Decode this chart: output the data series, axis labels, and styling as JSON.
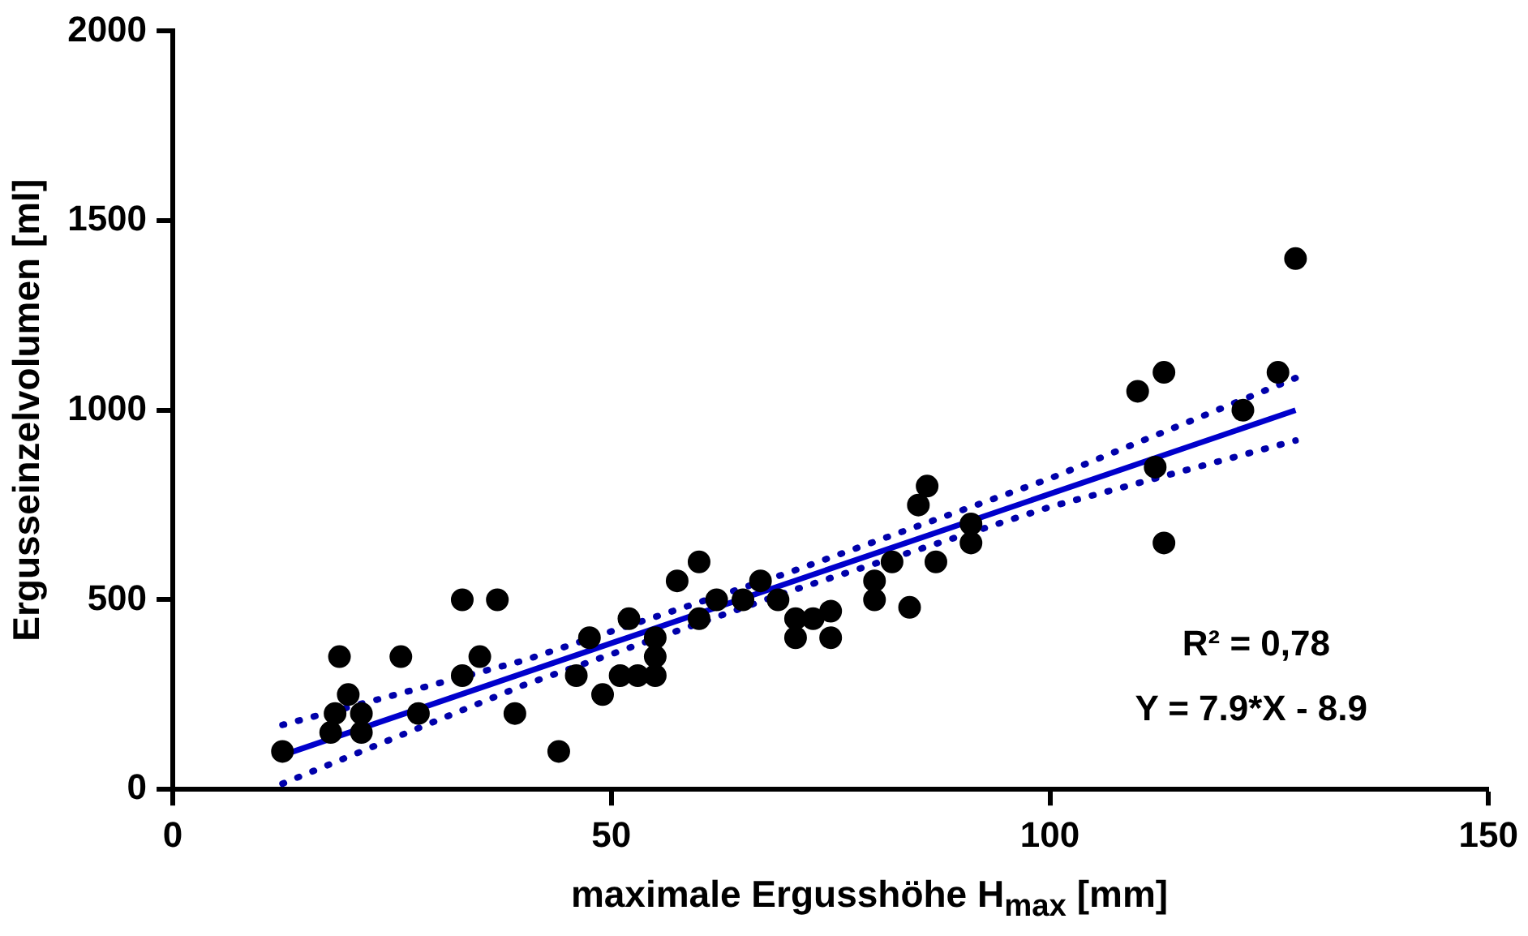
{
  "chart_data": {
    "type": "scatter",
    "xlabel": "maximale Ergusshöhe H$_{max}$ [mm]",
    "ylabel": "Ergusseinzelvolumen [ml]",
    "xlim": [
      0,
      150
    ],
    "xticks": [
      0,
      50,
      100,
      150
    ],
    "ylim": [
      0,
      2000
    ],
    "yticks": [
      0,
      500,
      1000,
      1500,
      2000
    ],
    "grid": false,
    "legend": false,
    "marker": "circle",
    "series": [
      {
        "color": "#000000",
        "x": [
          12.5,
          18,
          18.5,
          19,
          20,
          21.5,
          21.5,
          26,
          28,
          33,
          33,
          35,
          37,
          39,
          44,
          46,
          47.5,
          49,
          51,
          52,
          53,
          55,
          55,
          55,
          57.5,
          60,
          60,
          62,
          65,
          67,
          69,
          71,
          71,
          73,
          75,
          75,
          80,
          80,
          82,
          84,
          85,
          86,
          87,
          91,
          91,
          110,
          112,
          113,
          113,
          122,
          126,
          128
        ],
        "values": [
          100,
          150,
          200,
          350,
          250,
          200,
          150,
          350,
          200,
          500,
          300,
          350,
          500,
          200,
          100,
          300,
          400,
          250,
          300,
          450,
          300,
          400,
          350,
          300,
          550,
          450,
          600,
          500,
          500,
          550,
          500,
          400,
          450,
          450,
          470,
          400,
          500,
          550,
          600,
          480,
          750,
          800,
          600,
          700,
          650,
          1050,
          850,
          1100,
          650,
          1000,
          1100,
          1400
        ]
      },
      {
        "type": "line",
        "color": "#0000cc",
        "line_style": "solid",
        "marker": "none",
        "x": [
          12.5,
          128
        ],
        "values": [
          90,
          1000
        ]
      },
      {
        "type": "line",
        "color": "#0000aa",
        "line_style": "dotted",
        "marker": "none",
        "x": [
          12.5,
          40,
          70,
          100,
          128
        ],
        "values": [
          170,
          340,
          570,
          820,
          1085
        ]
      },
      {
        "type": "line",
        "color": "#0000aa",
        "line_style": "dotted",
        "marker": "none",
        "x": [
          12.5,
          40,
          70,
          100,
          128
        ],
        "values": [
          15,
          275,
          520,
          745,
          920
        ]
      }
    ],
    "annotations": [
      "R² = 0,78",
      "Y = 7.9*X - 8.9"
    ]
  }
}
